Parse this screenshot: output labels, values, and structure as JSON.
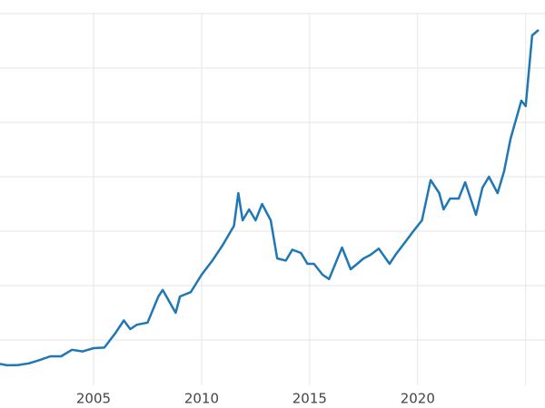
{
  "chart_data": {
    "type": "line",
    "x": [
      2000.67,
      2001.0,
      2001.5,
      2002.0,
      2002.5,
      2003.0,
      2003.5,
      2004.0,
      2004.5,
      2005.0,
      2005.5,
      2006.0,
      2006.4,
      2006.7,
      2007.0,
      2007.5,
      2008.0,
      2008.2,
      2008.8,
      2009.0,
      2009.5,
      2010.0,
      2010.5,
      2011.0,
      2011.5,
      2011.7,
      2011.9,
      2012.2,
      2012.5,
      2012.8,
      2013.2,
      2013.5,
      2013.9,
      2014.2,
      2014.6,
      2014.9,
      2015.2,
      2015.6,
      2015.9,
      2016.5,
      2016.9,
      2017.5,
      2017.8,
      2018.2,
      2018.7,
      2019.0,
      2019.5,
      2019.8,
      2020.2,
      2020.6,
      2021.0,
      2021.2,
      2021.5,
      2021.9,
      2022.2,
      2022.7,
      2023.0,
      2023.3,
      2023.7,
      2024.0,
      2024.3,
      2024.8,
      2025.0,
      2025.3,
      2025.6
    ],
    "series": [
      {
        "color": "#1f77b4",
        "values": [
          280,
          268,
          270,
          285,
          315,
          350,
          350,
          410,
          395,
          425,
          430,
          560,
          680,
          600,
          640,
          660,
          900,
          960,
          750,
          900,
          940,
          1100,
          1230,
          1380,
          1550,
          1850,
          1600,
          1700,
          1600,
          1750,
          1600,
          1250,
          1230,
          1330,
          1300,
          1200,
          1200,
          1100,
          1060,
          1350,
          1150,
          1250,
          1280,
          1340,
          1200,
          1290,
          1420,
          1500,
          1600,
          1970,
          1850,
          1700,
          1800,
          1800,
          1950,
          1650,
          1900,
          2000,
          1850,
          2050,
          2350,
          2700,
          2650,
          3300,
          3350
        ]
      }
    ],
    "xlim": [
      2000.67,
      2025.6
    ],
    "ylim": [
      100,
      3600
    ],
    "xticks": [
      2005,
      2010,
      2015,
      2020
    ],
    "xgrid": [
      2005,
      2010,
      2015,
      2020,
      2025
    ],
    "ygrid": [
      500,
      1000,
      1500,
      2000,
      2500,
      3000,
      3500
    ],
    "grid": true
  }
}
